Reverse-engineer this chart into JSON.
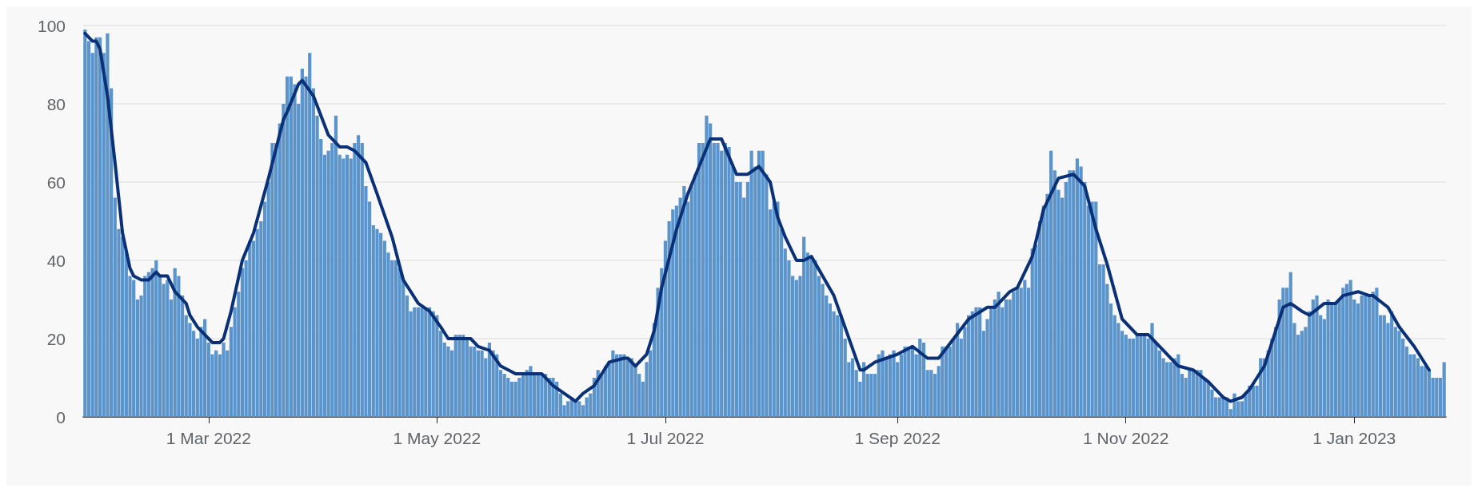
{
  "chart_data": {
    "type": "bar",
    "xlim": [
      "2022-01-26T12:00",
      "2023-01-25T12:00"
    ],
    "ylim": [
      0,
      100
    ],
    "yticks": [
      0,
      20,
      40,
      60,
      80,
      100
    ],
    "xticks": [
      {
        "value": "2022-03-01",
        "label": "1 Mar 2022"
      },
      {
        "value": "2022-05-01",
        "label": "1 May 2022"
      },
      {
        "value": "2022-07-01",
        "label": "1 Jul 2022"
      },
      {
        "value": "2022-09-01",
        "label": "1 Sep 2022"
      },
      {
        "value": "2022-11-01",
        "label": "1 Nov 2022"
      },
      {
        "value": "2023-01-01",
        "label": "1 Jan 2023"
      }
    ],
    "grid": "y",
    "marker": "none",
    "x": [
      "2022-01-27",
      "2022-01-28",
      "2022-01-29",
      "2022-01-30",
      "2022-01-31",
      "2022-02-01",
      "2022-02-02",
      "2022-02-03",
      "2022-02-04",
      "2022-02-05",
      "2022-02-06",
      "2022-02-07",
      "2022-02-08",
      "2022-02-09",
      "2022-02-10",
      "2022-02-11",
      "2022-02-12",
      "2022-02-13",
      "2022-02-14",
      "2022-02-15",
      "2022-02-16",
      "2022-02-17",
      "2022-02-18",
      "2022-02-19",
      "2022-02-20",
      "2022-02-21",
      "2022-02-22",
      "2022-02-23",
      "2022-02-24",
      "2022-02-25",
      "2022-02-26",
      "2022-02-27",
      "2022-02-28",
      "2022-03-01",
      "2022-03-02",
      "2022-03-03",
      "2022-03-04",
      "2022-03-05",
      "2022-03-06",
      "2022-03-07",
      "2022-03-08",
      "2022-03-09",
      "2022-03-10",
      "2022-03-11",
      "2022-03-12",
      "2022-03-13",
      "2022-03-14",
      "2022-03-15",
      "2022-03-16",
      "2022-03-17",
      "2022-03-18",
      "2022-03-19",
      "2022-03-20",
      "2022-03-21",
      "2022-03-22",
      "2022-03-23",
      "2022-03-24",
      "2022-03-25",
      "2022-03-26",
      "2022-03-27",
      "2022-03-28",
      "2022-03-29",
      "2022-03-30",
      "2022-03-31",
      "2022-04-01",
      "2022-04-02",
      "2022-04-03",
      "2022-04-04",
      "2022-04-05",
      "2022-04-06",
      "2022-04-07",
      "2022-04-08",
      "2022-04-09",
      "2022-04-10",
      "2022-04-11",
      "2022-04-12",
      "2022-04-13",
      "2022-04-14",
      "2022-04-15",
      "2022-04-16",
      "2022-04-17",
      "2022-04-18",
      "2022-04-19",
      "2022-04-20",
      "2022-04-21",
      "2022-04-22",
      "2022-04-23",
      "2022-04-24",
      "2022-04-25",
      "2022-04-26",
      "2022-04-27",
      "2022-04-28",
      "2022-04-29",
      "2022-04-30",
      "2022-05-01",
      "2022-05-02",
      "2022-05-03",
      "2022-05-04",
      "2022-05-05",
      "2022-05-06",
      "2022-05-07",
      "2022-05-08",
      "2022-05-09",
      "2022-05-10",
      "2022-05-11",
      "2022-05-12",
      "2022-05-13",
      "2022-05-14",
      "2022-05-15",
      "2022-05-16",
      "2022-05-17",
      "2022-05-18",
      "2022-05-19",
      "2022-05-20",
      "2022-05-21",
      "2022-05-22",
      "2022-05-23",
      "2022-05-24",
      "2022-05-25",
      "2022-05-26",
      "2022-05-27",
      "2022-05-28",
      "2022-05-29",
      "2022-05-30",
      "2022-05-31",
      "2022-06-01",
      "2022-06-02",
      "2022-06-03",
      "2022-06-04",
      "2022-06-05",
      "2022-06-06",
      "2022-06-07",
      "2022-06-08",
      "2022-06-09",
      "2022-06-10",
      "2022-06-11",
      "2022-06-12",
      "2022-06-13",
      "2022-06-14",
      "2022-06-15",
      "2022-06-16",
      "2022-06-17",
      "2022-06-18",
      "2022-06-19",
      "2022-06-20",
      "2022-06-21",
      "2022-06-22",
      "2022-06-23",
      "2022-06-24",
      "2022-06-25",
      "2022-06-26",
      "2022-06-27",
      "2022-06-28",
      "2022-06-29",
      "2022-06-30",
      "2022-07-01",
      "2022-07-02",
      "2022-07-03",
      "2022-07-04",
      "2022-07-05",
      "2022-07-06",
      "2022-07-07",
      "2022-07-08",
      "2022-07-09",
      "2022-07-10",
      "2022-07-11",
      "2022-07-12",
      "2022-07-13",
      "2022-07-14",
      "2022-07-15",
      "2022-07-16",
      "2022-07-17",
      "2022-07-18",
      "2022-07-19",
      "2022-07-20",
      "2022-07-21",
      "2022-07-22",
      "2022-07-23",
      "2022-07-24",
      "2022-07-25",
      "2022-07-26",
      "2022-07-27",
      "2022-07-28",
      "2022-07-29",
      "2022-07-30",
      "2022-07-31",
      "2022-08-01",
      "2022-08-02",
      "2022-08-03",
      "2022-08-04",
      "2022-08-05",
      "2022-08-06",
      "2022-08-07",
      "2022-08-08",
      "2022-08-09",
      "2022-08-10",
      "2022-08-11",
      "2022-08-12",
      "2022-08-13",
      "2022-08-14",
      "2022-08-15",
      "2022-08-16",
      "2022-08-17",
      "2022-08-18",
      "2022-08-19",
      "2022-08-20",
      "2022-08-21",
      "2022-08-22",
      "2022-08-23",
      "2022-08-24",
      "2022-08-25",
      "2022-08-26",
      "2022-08-27",
      "2022-08-28",
      "2022-08-29",
      "2022-08-30",
      "2022-08-31",
      "2022-09-01",
      "2022-09-02",
      "2022-09-03",
      "2022-09-04",
      "2022-09-05",
      "2022-09-06",
      "2022-09-07",
      "2022-09-08",
      "2022-09-09",
      "2022-09-10",
      "2022-09-11",
      "2022-09-12",
      "2022-09-13",
      "2022-09-14",
      "2022-09-15",
      "2022-09-16",
      "2022-09-17",
      "2022-09-18",
      "2022-09-19",
      "2022-09-20",
      "2022-09-21",
      "2022-09-22",
      "2022-09-23",
      "2022-09-24",
      "2022-09-25",
      "2022-09-26",
      "2022-09-27",
      "2022-09-28",
      "2022-09-29",
      "2022-09-30",
      "2022-10-01",
      "2022-10-02",
      "2022-10-03",
      "2022-10-04",
      "2022-10-05",
      "2022-10-06",
      "2022-10-07",
      "2022-10-08",
      "2022-10-09",
      "2022-10-10",
      "2022-10-11",
      "2022-10-12",
      "2022-10-13",
      "2022-10-14",
      "2022-10-15",
      "2022-10-16",
      "2022-10-17",
      "2022-10-18",
      "2022-10-19",
      "2022-10-20",
      "2022-10-21",
      "2022-10-22",
      "2022-10-23",
      "2022-10-24",
      "2022-10-25",
      "2022-10-26",
      "2022-10-27",
      "2022-10-28",
      "2022-10-29",
      "2022-10-30",
      "2022-10-31",
      "2022-11-01",
      "2022-11-02",
      "2022-11-03",
      "2022-11-04",
      "2022-11-05",
      "2022-11-06",
      "2022-11-07",
      "2022-11-08",
      "2022-11-09",
      "2022-11-10",
      "2022-11-11",
      "2022-11-12",
      "2022-11-13",
      "2022-11-14",
      "2022-11-15",
      "2022-11-16",
      "2022-11-17",
      "2022-11-18",
      "2022-11-19",
      "2022-11-20",
      "2022-11-21",
      "2022-11-22",
      "2022-11-23",
      "2022-11-24",
      "2022-11-25",
      "2022-11-26",
      "2022-11-27",
      "2022-11-28",
      "2022-11-29",
      "2022-11-30",
      "2022-12-01",
      "2022-12-02",
      "2022-12-03",
      "2022-12-04",
      "2022-12-05",
      "2022-12-06",
      "2022-12-07",
      "2022-12-08",
      "2022-12-09",
      "2022-12-10",
      "2022-12-11",
      "2022-12-12",
      "2022-12-13",
      "2022-12-14",
      "2022-12-15",
      "2022-12-16",
      "2022-12-17",
      "2022-12-18",
      "2022-12-19",
      "2022-12-20",
      "2022-12-21",
      "2022-12-22",
      "2022-12-23",
      "2022-12-24",
      "2022-12-25",
      "2022-12-26",
      "2022-12-27",
      "2022-12-28",
      "2022-12-29",
      "2022-12-30",
      "2022-12-31",
      "2023-01-01",
      "2023-01-02",
      "2023-01-03",
      "2023-01-04",
      "2023-01-05",
      "2023-01-06",
      "2023-01-07",
      "2023-01-08",
      "2023-01-09",
      "2023-01-10",
      "2023-01-11",
      "2023-01-12",
      "2023-01-13",
      "2023-01-14",
      "2023-01-15",
      "2023-01-16",
      "2023-01-17",
      "2023-01-18",
      "2023-01-19",
      "2023-01-20",
      "2023-01-21",
      "2023-01-22",
      "2023-01-23",
      "2023-01-24",
      "2023-01-25"
    ],
    "series": [
      {
        "color": "#5a94cb",
        "values": [
          99,
          96,
          93,
          97,
          97,
          93,
          98,
          84,
          56,
          48,
          46,
          42,
          36,
          35,
          30,
          31,
          36,
          37,
          38,
          40,
          36,
          34,
          35,
          30,
          38,
          36,
          31,
          26,
          24,
          22,
          20,
          23,
          25,
          19,
          16,
          17,
          16,
          19,
          17,
          23,
          28,
          32,
          38,
          40,
          45,
          45,
          48,
          50,
          55,
          60,
          70,
          70,
          75,
          80,
          87,
          87,
          85,
          80,
          89,
          87,
          93,
          84,
          77,
          71,
          67,
          68,
          70,
          77,
          67,
          66,
          67,
          66,
          70,
          72,
          70,
          59,
          55,
          49,
          48,
          47,
          45,
          42,
          40,
          40,
          38,
          35,
          31,
          27,
          28,
          28,
          28,
          28,
          28,
          27,
          26,
          22,
          19,
          18,
          17,
          21,
          21,
          21,
          20,
          18,
          18,
          17,
          17,
          15,
          19,
          17,
          16,
          12,
          11,
          10,
          9,
          9,
          10,
          11,
          12,
          13,
          11,
          11,
          11,
          11,
          10,
          10,
          9,
          6,
          3,
          4,
          5,
          4,
          4,
          3,
          5,
          6,
          10,
          12,
          11,
          13,
          14,
          17,
          16,
          16,
          16,
          15,
          15,
          13,
          11,
          9,
          14,
          17,
          24,
          33,
          38,
          45,
          50,
          53,
          54,
          56,
          59,
          55,
          59,
          62,
          70,
          70,
          77,
          75,
          70,
          70,
          68,
          70,
          69,
          64,
          60,
          60,
          56,
          60,
          68,
          64,
          68,
          68,
          62,
          53,
          55,
          55,
          48,
          43,
          40,
          36,
          35,
          36,
          46,
          42,
          41,
          40,
          36,
          34,
          31,
          29,
          27,
          26,
          26,
          20,
          14,
          15,
          12,
          9,
          14,
          11,
          11,
          11,
          16,
          17,
          15,
          16,
          17,
          14,
          16,
          18,
          18,
          18,
          16,
          20,
          19,
          12,
          12,
          11,
          13,
          18,
          18,
          18,
          20,
          24,
          20,
          23,
          26,
          27,
          28,
          28,
          22,
          25,
          28,
          30,
          32,
          28,
          30,
          30,
          32,
          33,
          33,
          35,
          33,
          43,
          44,
          50,
          54,
          57,
          68,
          63,
          58,
          56,
          60,
          63,
          63,
          66,
          64,
          60,
          54,
          55,
          55,
          39,
          39,
          34,
          29,
          26,
          24,
          22,
          21,
          20,
          20,
          21,
          21,
          21,
          20,
          24,
          19,
          17,
          15,
          14,
          14,
          15,
          16,
          11,
          10,
          12,
          12,
          12,
          12,
          10,
          9,
          7,
          5,
          5,
          5,
          5,
          2,
          6,
          4,
          4,
          6,
          8,
          8,
          8,
          15,
          15,
          17,
          20,
          23,
          30,
          33,
          33,
          37,
          24,
          21,
          22,
          23,
          27,
          30,
          31,
          26,
          25,
          30,
          29,
          29,
          30,
          33,
          34,
          35,
          30,
          29,
          31,
          31,
          31,
          32,
          33,
          26,
          26,
          24,
          27,
          23,
          22,
          20,
          18,
          16,
          16,
          15,
          13,
          13,
          12,
          10,
          10,
          10,
          14
        ]
      },
      {
        "type": "line",
        "color": "#0a3178",
        "x": [
          "2022-01-27",
          "2022-01-29",
          "2022-01-30",
          "2022-01-31",
          "2022-02-01",
          "2022-02-02",
          "2022-02-04",
          "2022-02-06",
          "2022-02-08",
          "2022-02-09",
          "2022-02-11",
          "2022-02-13",
          "2022-02-15",
          "2022-02-16",
          "2022-02-18",
          "2022-02-20",
          "2022-02-23",
          "2022-02-24",
          "2022-02-26",
          "2022-03-01",
          "2022-03-02",
          "2022-03-04",
          "2022-03-05",
          "2022-03-07",
          "2022-03-10",
          "2022-03-13",
          "2022-03-17",
          "2022-03-21",
          "2022-03-22",
          "2022-03-25",
          "2022-03-26",
          "2022-03-29",
          "2022-04-02",
          "2022-04-05",
          "2022-04-07",
          "2022-04-09",
          "2022-04-12",
          "2022-04-15",
          "2022-04-19",
          "2022-04-22",
          "2022-04-26",
          "2022-04-29",
          "2022-05-02",
          "2022-05-04",
          "2022-05-07",
          "2022-05-10",
          "2022-05-12",
          "2022-05-15",
          "2022-05-18",
          "2022-05-22",
          "2022-05-24",
          "2022-05-27",
          "2022-05-29",
          "2022-06-01",
          "2022-06-04",
          "2022-06-07",
          "2022-06-09",
          "2022-06-12",
          "2022-06-16",
          "2022-06-20",
          "2022-06-21",
          "2022-06-23",
          "2022-06-26",
          "2022-06-28",
          "2022-06-30",
          "2022-07-04",
          "2022-07-07",
          "2022-07-10",
          "2022-07-13",
          "2022-07-16",
          "2022-07-20",
          "2022-07-23",
          "2022-07-26",
          "2022-07-29",
          "2022-07-31",
          "2022-08-02",
          "2022-08-05",
          "2022-08-07",
          "2022-08-09",
          "2022-08-15",
          "2022-08-22",
          "2022-08-23",
          "2022-08-26",
          "2022-08-29",
          "2022-09-01",
          "2022-09-05",
          "2022-09-09",
          "2022-09-12",
          "2022-09-16",
          "2022-09-20",
          "2022-09-25",
          "2022-09-27",
          "2022-10-01",
          "2022-10-03",
          "2022-10-07",
          "2022-10-10",
          "2022-10-14",
          "2022-10-18",
          "2022-10-21",
          "2022-10-24",
          "2022-10-27",
          "2022-10-31",
          "2022-11-04",
          "2022-11-07",
          "2022-11-11",
          "2022-11-15",
          "2022-11-19",
          "2022-11-23",
          "2022-11-27",
          "2022-11-29",
          "2022-12-02",
          "2022-12-04",
          "2022-12-08",
          "2022-12-13",
          "2022-12-15",
          "2022-12-18",
          "2022-12-20",
          "2022-12-24",
          "2022-12-27",
          "2022-12-29",
          "2023-01-02",
          "2023-01-05",
          "2023-01-06",
          "2023-01-10",
          "2023-01-13",
          "2023-01-17",
          "2023-01-21"
        ],
        "values": [
          98,
          96,
          96,
          94,
          88,
          82,
          65,
          47,
          38,
          36,
          35,
          35,
          37,
          36,
          36,
          32,
          29,
          26,
          23,
          20,
          19,
          19,
          20,
          27,
          40,
          47,
          61,
          76,
          78,
          85,
          86,
          82,
          72,
          69,
          69,
          68,
          65,
          57,
          46,
          35,
          29,
          27,
          23,
          20,
          20,
          20,
          18,
          17,
          13,
          11,
          11,
          11,
          11,
          8,
          6,
          4,
          6,
          8,
          14,
          15,
          15,
          13,
          16,
          22,
          33,
          48,
          57,
          64,
          71,
          71,
          62,
          62,
          64,
          60,
          51,
          46,
          40,
          40,
          41,
          31,
          12,
          12,
          14,
          15,
          16,
          18,
          15,
          15,
          20,
          25,
          28,
          28,
          32,
          33,
          41,
          53,
          61,
          62,
          59,
          48,
          39,
          25,
          21,
          21,
          17,
          13,
          12,
          9,
          5,
          4,
          5,
          7,
          13,
          28,
          29,
          27,
          26,
          29,
          29,
          31,
          32,
          31,
          31,
          28,
          23,
          18,
          12
        ]
      }
    ]
  }
}
